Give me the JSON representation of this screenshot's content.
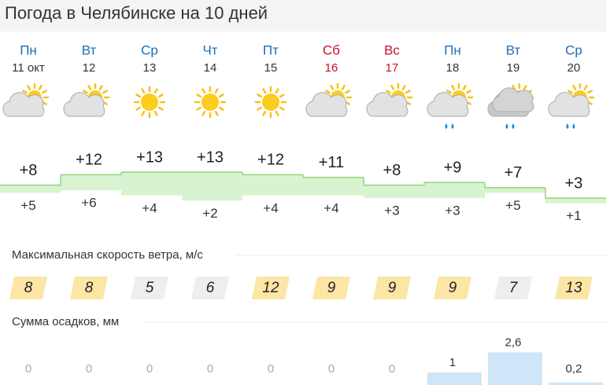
{
  "title": "Погода в Челябинске на 10 дней",
  "days": [
    {
      "name": "Пн",
      "date": "11 окт",
      "weekend": false,
      "max": 8,
      "max_label": "+8",
      "min": 5,
      "min_label": "+5",
      "wind": 8,
      "wind_color": "#fbe6a6",
      "precip": 0
    },
    {
      "name": "Вт",
      "date": "12",
      "weekend": false,
      "max": 12,
      "max_label": "+12",
      "min": 6,
      "min_label": "+6",
      "wind": 8,
      "wind_color": "#fbe6a6",
      "precip": 0
    },
    {
      "name": "Ср",
      "date": "13",
      "weekend": false,
      "max": 13,
      "max_label": "+13",
      "min": 4,
      "min_label": "+4",
      "wind": 5,
      "wind_color": "#eeeeee",
      "precip": 0
    },
    {
      "name": "Чт",
      "date": "14",
      "weekend": false,
      "max": 13,
      "max_label": "+13",
      "min": 2,
      "min_label": "+2",
      "wind": 6,
      "wind_color": "#eeeeee",
      "precip": 0
    },
    {
      "name": "Пт",
      "date": "15",
      "weekend": false,
      "max": 12,
      "max_label": "+12",
      "min": 4,
      "min_label": "+4",
      "wind": 12,
      "wind_color": "#fbe6a6",
      "precip": 0
    },
    {
      "name": "Сб",
      "date": "16",
      "weekend": true,
      "max": 11,
      "max_label": "+11",
      "min": 4,
      "min_label": "+4",
      "wind": 9,
      "wind_color": "#fbe6a6",
      "precip": 0
    },
    {
      "name": "Вс",
      "date": "17",
      "weekend": true,
      "max": 8,
      "max_label": "+8",
      "min": 3,
      "min_label": "+3",
      "wind": 9,
      "wind_color": "#fbe6a6",
      "precip": 0
    },
    {
      "name": "Пн",
      "date": "18",
      "weekend": false,
      "max": 9,
      "max_label": "+9",
      "min": 3,
      "min_label": "+3",
      "wind": 9,
      "wind_color": "#fbe6a6",
      "precip": 1
    },
    {
      "name": "Вт",
      "date": "19",
      "weekend": false,
      "max": 7,
      "max_label": "+7",
      "min": 5,
      "min_label": "+5",
      "wind": 7,
      "wind_color": "#eeeeee",
      "precip": 2.6,
      "precip_label": "2,6"
    },
    {
      "name": "Ср",
      "date": "20",
      "weekend": false,
      "max": 3,
      "max_label": "+3",
      "min": 1,
      "min_label": "+1",
      "wind": 13,
      "wind_color": "#fbe6a6",
      "precip": 0.2,
      "precip_label": "0,2"
    }
  ],
  "wind_title": "Максимальная скорость ветра, м/с",
  "precip_title": "Сумма осадков, мм"
}
